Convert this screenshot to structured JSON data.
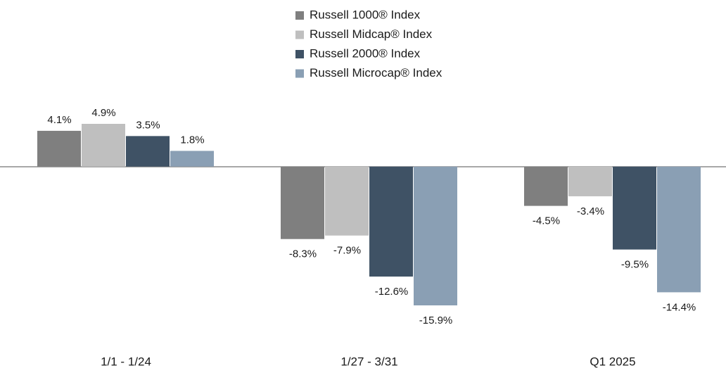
{
  "chart_data": {
    "type": "bar",
    "categories": [
      "1/1 - 1/24",
      "1/27 - 3/31",
      "Q1 2025"
    ],
    "series": [
      {
        "name": "Russell 1000® Index",
        "color": "#7f7f7f",
        "values": [
          4.1,
          -8.3,
          -4.5
        ],
        "value_labels": [
          "4.1%",
          "-8.3%",
          "-4.5%"
        ]
      },
      {
        "name": "Russell Midcap® Index",
        "color": "#bfbfbf",
        "values": [
          4.9,
          -7.9,
          -3.4
        ],
        "value_labels": [
          "4.9%",
          "-7.9%",
          "-3.4%"
        ]
      },
      {
        "name": "Russell 2000® Index",
        "color": "#3f5265",
        "values": [
          3.5,
          -12.6,
          -9.5
        ],
        "value_labels": [
          "3.5%",
          "-12.6%",
          "-9.5%"
        ]
      },
      {
        "name": "Russell Microcap® Index",
        "color": "#8a9fb4",
        "values": [
          1.8,
          -15.9,
          -14.4
        ],
        "value_labels": [
          "1.8%",
          "-15.9%",
          "-14.4%"
        ]
      }
    ],
    "legend": "top"
  }
}
